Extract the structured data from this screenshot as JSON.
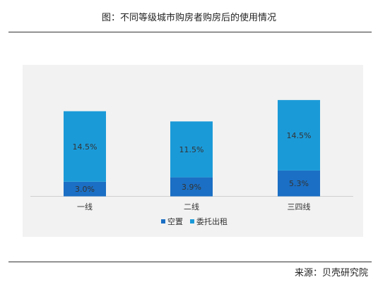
{
  "header": {
    "title": "图：不同等级城市购房者购房后的使用情况"
  },
  "footer": {
    "source": "来源：贝壳研究院"
  },
  "chart_data": {
    "type": "bar",
    "stacked": true,
    "categories": [
      "一线",
      "二线",
      "三四线"
    ],
    "series": [
      {
        "name": "空置",
        "values": [
          3.0,
          3.9,
          5.3
        ],
        "labels": [
          "3.0%",
          "3.9%",
          "5.3%"
        ],
        "color": "#1b6fc4"
      },
      {
        "name": "委托出租",
        "values": [
          14.5,
          11.5,
          14.5
        ],
        "labels": [
          "14.5%",
          "11.5%",
          "14.5%"
        ],
        "color": "#1b9ad8"
      }
    ],
    "title": "",
    "xlabel": "",
    "ylabel": "",
    "ylim": [
      0,
      20
    ],
    "grid": false,
    "legend": "bottom-center",
    "plot_background": "#f2f2f2"
  }
}
